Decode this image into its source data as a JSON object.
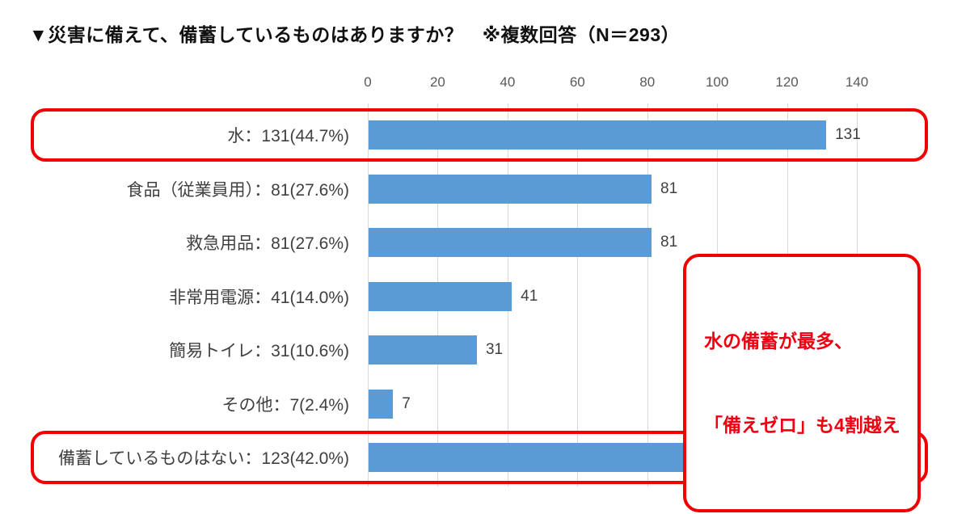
{
  "header": {
    "title": "▼災害に備えて、備蓄しているものはありますか？　※複数回答（N＝293）"
  },
  "chart_data": {
    "type": "bar",
    "orientation": "horizontal",
    "title": "▼災害に備えて、備蓄しているものはありますか？　※複数回答（N＝293）",
    "n": 293,
    "categories": [
      "水",
      "食品（従業員用）",
      "救急用品",
      "非常用電源",
      "簡易トイレ",
      "その他",
      "備蓄しているものはない"
    ],
    "values": [
      131,
      81,
      81,
      41,
      31,
      7,
      123
    ],
    "percents": [
      "44.7%",
      "27.6%",
      "27.6%",
      "14.0%",
      "10.6%",
      "2.4%",
      "42.0%"
    ],
    "row_labels": [
      "水：131(44.7%)",
      "食品（従業員用）：81(27.6%)",
      "救急用品：81(27.6%)",
      "非常用電源：41(14.0%)",
      "簡易トイレ：31(10.6%)",
      "その他：7(2.4%)",
      "備蓄しているものはない：123(42.0%)"
    ],
    "value_labels": [
      "131",
      "81",
      "81",
      "41",
      "31",
      "7",
      "123"
    ],
    "xlim": [
      0,
      140
    ],
    "xticks": [
      "0",
      "20",
      "40",
      "60",
      "80",
      "100",
      "120",
      "140"
    ],
    "grid": true,
    "legend": "none",
    "bar_color": "#5b9bd5",
    "highlight_color": "#f20000",
    "highlighted_rows": [
      0,
      6
    ],
    "annotation": {
      "lines": [
        "水の備蓄が最多、",
        "「備えゼロ」も4割越え"
      ],
      "text_color": "#ee0011"
    }
  }
}
